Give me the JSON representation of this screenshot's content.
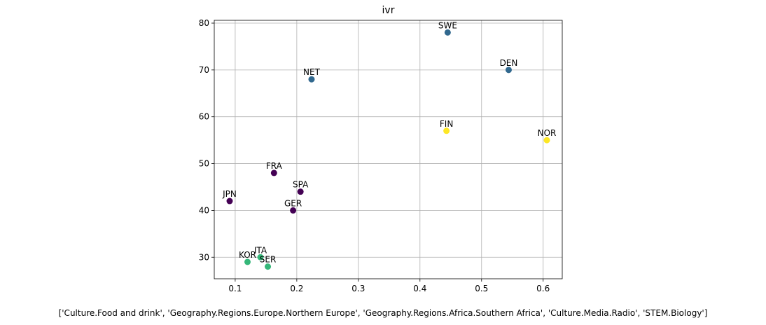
{
  "chart_data": {
    "type": "scatter",
    "title": "ivr",
    "xlabel": "['Culture.Food and drink', 'Geography.Regions.Europe.Northern Europe', 'Geography.Regions.Africa.Southern Africa', 'Culture.Media.Radio', 'STEM.Biology']",
    "ylabel": "",
    "xlim": [
      0.066,
      0.631
    ],
    "ylim": [
      25.4,
      80.6
    ],
    "xticks": [
      0.1,
      0.2,
      0.3,
      0.4,
      0.5,
      0.6
    ],
    "xtick_labels": [
      "0.1",
      "0.2",
      "0.3",
      "0.4",
      "0.5",
      "0.6"
    ],
    "yticks": [
      30,
      40,
      50,
      60,
      70,
      80
    ],
    "ytick_labels": [
      "30",
      "40",
      "50",
      "60",
      "70",
      "80"
    ],
    "grid": true,
    "points": [
      {
        "label": "SWE",
        "x": 0.445,
        "y": 78,
        "color": "#31688e"
      },
      {
        "label": "DEN",
        "x": 0.544,
        "y": 70,
        "color": "#31688e"
      },
      {
        "label": "NET",
        "x": 0.224,
        "y": 68,
        "color": "#31688e"
      },
      {
        "label": "FIN",
        "x": 0.443,
        "y": 57,
        "color": "#fde725"
      },
      {
        "label": "NOR",
        "x": 0.606,
        "y": 55,
        "color": "#fde725"
      },
      {
        "label": "FRA",
        "x": 0.163,
        "y": 48,
        "color": "#440154"
      },
      {
        "label": "SPA",
        "x": 0.206,
        "y": 44,
        "color": "#440154"
      },
      {
        "label": "JPN",
        "x": 0.091,
        "y": 42,
        "color": "#440154"
      },
      {
        "label": "GER",
        "x": 0.194,
        "y": 40,
        "color": "#440154"
      },
      {
        "label": "ITA",
        "x": 0.141,
        "y": 30,
        "color": "#35b779"
      },
      {
        "label": "KOR",
        "x": 0.12,
        "y": 29,
        "color": "#35b779"
      },
      {
        "label": "SER",
        "x": 0.153,
        "y": 28,
        "color": "#35b779"
      }
    ]
  }
}
